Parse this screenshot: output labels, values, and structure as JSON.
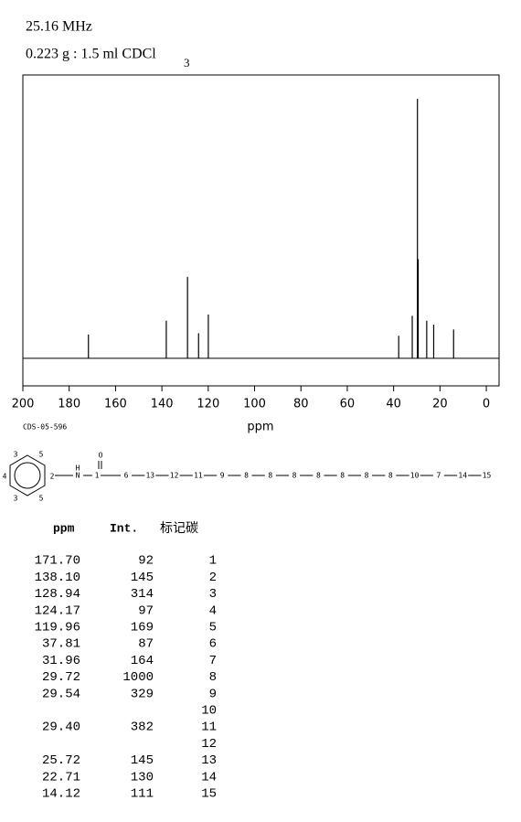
{
  "header": {
    "frequency": "25.16 MHz",
    "sample": "0.223 g : 1.5 ml CDCl",
    "sample_subscript": "3"
  },
  "chart_data": {
    "type": "spectrum",
    "x_label": "ppm",
    "code": "CDS-05-596",
    "x": [
      171.7,
      138.1,
      128.94,
      124.17,
      119.96,
      37.81,
      31.96,
      29.72,
      29.54,
      29.4,
      25.72,
      22.71,
      14.12
    ],
    "values": [
      92,
      145,
      314,
      97,
      169,
      87,
      164,
      1000,
      329,
      382,
      145,
      130,
      111
    ],
    "color": "#000000",
    "xlim": [
      200,
      -5.5
    ],
    "xticks": [
      200,
      180,
      160,
      140,
      120,
      100,
      80,
      60,
      40,
      20,
      0
    ],
    "ylim": [
      -106,
      1092
    ]
  },
  "structure": {
    "ring_labels": [
      "3",
      "5",
      "4",
      "2",
      "3",
      "5"
    ],
    "nh": "N",
    "h": "H",
    "carbonyl": "1",
    "oxygen": "O",
    "chain": [
      "6",
      "13",
      "12",
      "11",
      "9",
      "8",
      "8",
      "8",
      "8",
      "8",
      "8",
      "8",
      "10",
      "7",
      "14",
      "15"
    ]
  },
  "table": {
    "columns": [
      "ppm",
      "Int.",
      "标记碳"
    ],
    "rows": [
      {
        "ppm": "171.70",
        "int": "92",
        "carbon": "1"
      },
      {
        "ppm": "138.10",
        "int": "145",
        "carbon": "2"
      },
      {
        "ppm": "128.94",
        "int": "314",
        "carbon": "3"
      },
      {
        "ppm": "124.17",
        "int": "97",
        "carbon": "4"
      },
      {
        "ppm": "119.96",
        "int": "169",
        "carbon": "5"
      },
      {
        "ppm": "37.81",
        "int": "87",
        "carbon": "6"
      },
      {
        "ppm": "31.96",
        "int": "164",
        "carbon": "7"
      },
      {
        "ppm": "29.72",
        "int": "1000",
        "carbon": "8"
      },
      {
        "ppm": "29.54",
        "int": "329",
        "carbon": "9"
      },
      {
        "carbon": "10"
      },
      {
        "ppm": "29.40",
        "int": "382",
        "carbon": "11"
      },
      {
        "carbon": "12"
      },
      {
        "ppm": "25.72",
        "int": "145",
        "carbon": "13"
      },
      {
        "ppm": "22.71",
        "int": "130",
        "carbon": "14"
      },
      {
        "ppm": "14.12",
        "int": "111",
        "carbon": "15"
      }
    ]
  }
}
